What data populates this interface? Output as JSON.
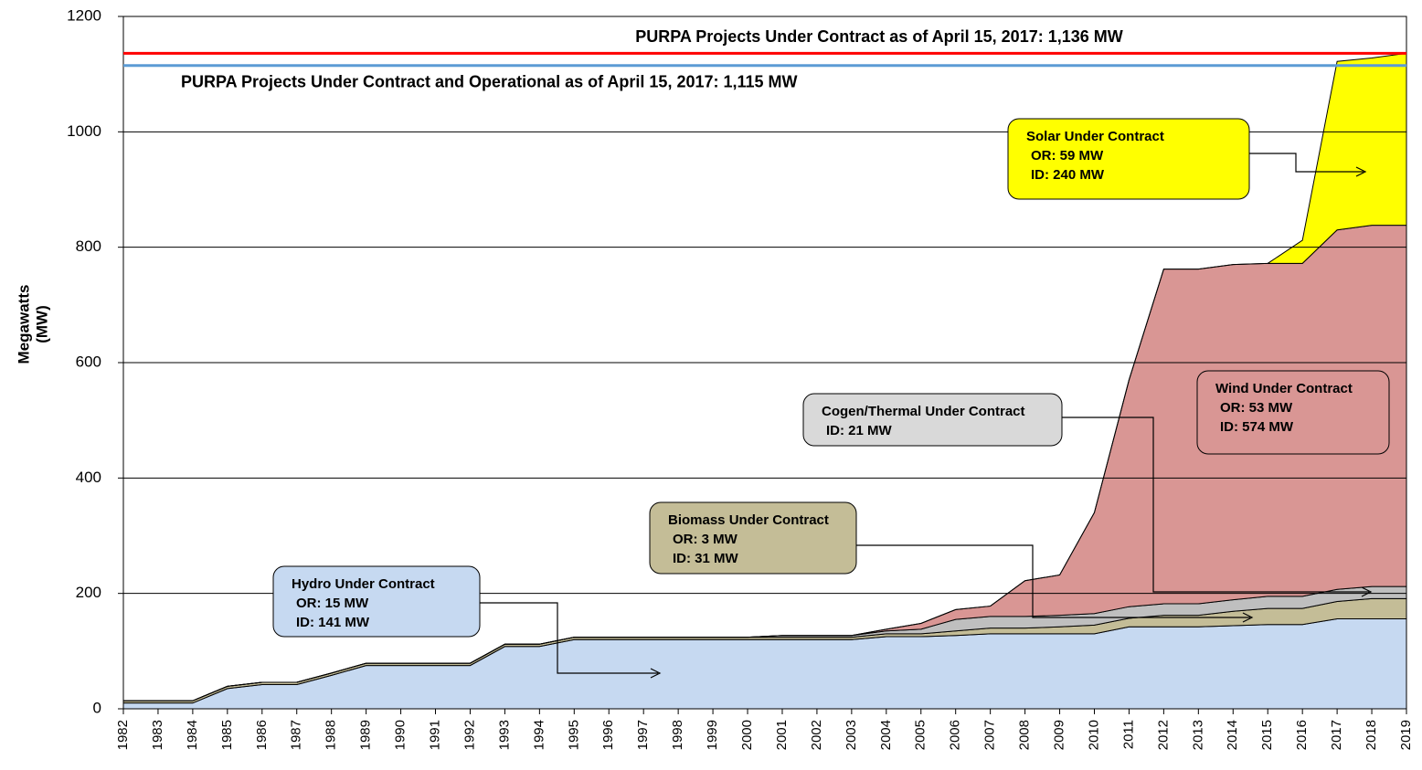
{
  "chart_data": {
    "type": "stacked-area",
    "y_label": [
      "Megawatts",
      "(MW)"
    ],
    "categories": [
      "1982",
      "1983",
      "1984",
      "1985",
      "1986",
      "1987",
      "1988",
      "1989",
      "1990",
      "1991",
      "1992",
      "1993",
      "1994",
      "1995",
      "1996",
      "1997",
      "1998",
      "1999",
      "2000",
      "2001",
      "2002",
      "2003",
      "2004",
      "2005",
      "2006",
      "2007",
      "2008",
      "2009",
      "2010",
      "2011",
      "2012",
      "2013",
      "2014",
      "2015",
      "2016",
      "2017",
      "2018",
      "2019"
    ],
    "series": [
      {
        "name": "Hydro",
        "color": "#c6d9f1",
        "values": [
          10,
          10,
          10,
          35,
          42,
          42,
          58,
          75,
          75,
          75,
          75,
          108,
          108,
          120,
          120,
          120,
          120,
          120,
          120,
          120,
          120,
          120,
          125,
          125,
          127,
          130,
          130,
          130,
          130,
          142,
          142,
          142,
          144,
          146,
          146,
          156,
          156,
          156
        ]
      },
      {
        "name": "Biomass",
        "color": "#c4bd97",
        "values": [
          4,
          4,
          4,
          4,
          4,
          4,
          4,
          4,
          4,
          4,
          4,
          4,
          4,
          4,
          4,
          4,
          4,
          4,
          4,
          4,
          4,
          4,
          5,
          5,
          8,
          10,
          10,
          12,
          15,
          15,
          20,
          20,
          25,
          28,
          28,
          30,
          35,
          35
        ]
      },
      {
        "name": "Cogen/Thermal",
        "color": "#bfbfbf",
        "values": [
          0,
          0,
          0,
          0,
          0,
          0,
          0,
          0,
          0,
          0,
          0,
          0,
          0,
          0,
          0,
          0,
          0,
          0,
          0,
          3,
          3,
          3,
          5,
          8,
          20,
          20,
          20,
          20,
          20,
          20,
          20,
          20,
          20,
          21,
          21,
          21,
          21,
          21
        ]
      },
      {
        "name": "Wind",
        "color": "#d99694",
        "values": [
          0,
          0,
          0,
          0,
          0,
          0,
          0,
          0,
          0,
          0,
          0,
          0,
          0,
          0,
          0,
          0,
          0,
          0,
          0,
          0,
          0,
          0,
          3,
          10,
          17,
          18,
          62,
          70,
          175,
          393,
          580,
          580,
          581,
          577,
          577,
          623,
          626,
          626
        ]
      },
      {
        "name": "Solar",
        "color": "#ffff00",
        "values": [
          0,
          0,
          0,
          0,
          0,
          0,
          0,
          0,
          0,
          0,
          0,
          0,
          0,
          0,
          0,
          0,
          0,
          0,
          0,
          0,
          0,
          0,
          0,
          0,
          0,
          0,
          0,
          0,
          0,
          0,
          0,
          0,
          0,
          0,
          40,
          292,
          290,
          298
        ]
      }
    ],
    "ylim": [
      0,
      1200
    ],
    "yticks": [
      0,
      200,
      400,
      600,
      800,
      1000,
      1200
    ],
    "grid": true,
    "reference_lines": [
      {
        "value": 1136,
        "label": "PURPA Projects Under Contract as of April 15, 2017:  1,136 MW",
        "color": "#ff0000"
      },
      {
        "value": 1115,
        "label": "PURPA Projects Under Contract and Operational as of April 15, 2017: 1,115 MW",
        "color": "#5b9bd5"
      }
    ],
    "annotations": [
      {
        "lines": [
          "Solar Under Contract",
          "OR:  59 MW",
          "ID:  240 MW"
        ],
        "color": "#ffff00"
      },
      {
        "lines": [
          "Wind Under Contract",
          "OR:  53 MW",
          "ID:  574 MW"
        ],
        "color": "#d99694"
      },
      {
        "lines": [
          "Cogen/Thermal Under Contract",
          "ID:  21 MW"
        ],
        "color": "#d9d9d9"
      },
      {
        "lines": [
          "Biomass Under Contract",
          "OR:  3 MW",
          "ID:  31 MW"
        ],
        "color": "#c4bd97"
      },
      {
        "lines": [
          "Hydro Under Contract",
          "OR:  15 MW",
          "ID:  141 MW"
        ],
        "color": "#c6d9f1"
      }
    ]
  }
}
